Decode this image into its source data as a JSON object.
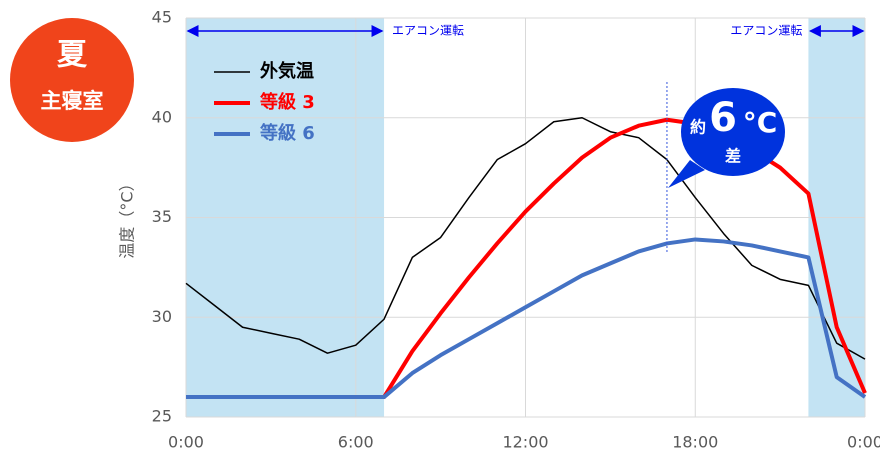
{
  "chart_data": {
    "type": "line",
    "badge": {
      "season": "夏",
      "room": "主寝室"
    },
    "y_label": "温度（°C）",
    "x": [
      0,
      1,
      2,
      3,
      4,
      5,
      6,
      7,
      8,
      9,
      10,
      11,
      12,
      13,
      14,
      15,
      16,
      17,
      18,
      19,
      20,
      21,
      22,
      23,
      24
    ],
    "xlim": [
      0,
      24
    ],
    "xticks": [
      {
        "value": 0,
        "label": "0:00"
      },
      {
        "value": 6,
        "label": "6:00"
      },
      {
        "value": 12,
        "label": "12:00"
      },
      {
        "value": 18,
        "label": "18:00"
      },
      {
        "value": 24,
        "label": "0:00"
      }
    ],
    "ylim": [
      25,
      45
    ],
    "yticks": [
      25,
      30,
      35,
      40,
      45
    ],
    "grid": true,
    "ac_periods": [
      {
        "range": [
          0,
          7
        ],
        "label": "エアコン運転"
      },
      {
        "range": [
          22,
          24
        ],
        "label": "エアコン運転"
      }
    ],
    "ac_color": "#c3e3f3",
    "series": [
      {
        "name": "外気温",
        "color": "#000000",
        "width": 1.5,
        "values": [
          31.7,
          30.6,
          29.5,
          29.2,
          28.9,
          28.2,
          28.6,
          29.9,
          33.0,
          34.0,
          36.0,
          37.9,
          38.7,
          39.8,
          40.0,
          39.3,
          39.0,
          37.9,
          36.0,
          34.2,
          32.6,
          31.9,
          31.6,
          28.7,
          27.9
        ]
      },
      {
        "name": "等級 3",
        "color": "#ff0000",
        "width": 4,
        "values": [
          26,
          26,
          26,
          26,
          26,
          26,
          26,
          26,
          28.3,
          30.2,
          32.0,
          33.7,
          35.3,
          36.7,
          38.0,
          39.0,
          39.6,
          39.9,
          39.7,
          39.2,
          38.4,
          37.5,
          36.2,
          29.5,
          26.2
        ]
      },
      {
        "name": "等級 6",
        "color": "#4472c4",
        "width": 4,
        "values": [
          26,
          26,
          26,
          26,
          26,
          26,
          26,
          26,
          27.2,
          28.1,
          28.9,
          29.7,
          30.5,
          31.3,
          32.1,
          32.7,
          33.3,
          33.7,
          33.9,
          33.8,
          33.6,
          33.3,
          33.0,
          27.0,
          26.0
        ]
      }
    ],
    "callout": {
      "x": 17,
      "prefix": "約",
      "number": "6",
      "unit": "°C",
      "suffix": "差"
    }
  }
}
